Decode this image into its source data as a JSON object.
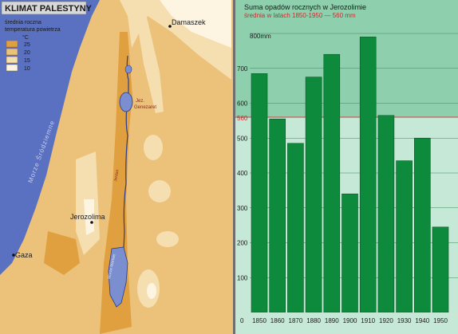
{
  "map": {
    "title": "KLIMAT PALESTYNY",
    "legend": {
      "caption_line1": "średnia roczna",
      "caption_line2": "temperatura powietrza",
      "unit": "°C",
      "items": [
        {
          "label": "25",
          "color": "#e0a040"
        },
        {
          "label": "20",
          "color": "#ecc27a"
        },
        {
          "label": "15",
          "color": "#f5deb0"
        },
        {
          "label": "10",
          "color": "#fdf4e2"
        }
      ]
    },
    "sea_label": "Morze Śródziemne",
    "cities": [
      {
        "name": "Damaszek"
      },
      {
        "name": "Jerozolima"
      },
      {
        "name": "Gaza"
      }
    ],
    "lake_label_line1": "Jez.",
    "lake_label_line2": "Genezaret",
    "river_label": "Jordan",
    "dead_sea_label": "Morze Martwe",
    "colors": {
      "sea": "#5a70c0",
      "lake": "#7a8ed0"
    }
  },
  "chart_data": {
    "type": "bar",
    "title": "Suma opadów rocznych w Jerozolimie",
    "subtitle": "średnia w latach 1850-1950 — 560 mm",
    "unit_label": "800mm",
    "categories": [
      "1850",
      "1860",
      "1870",
      "1880",
      "1890",
      "1900",
      "1910",
      "1920",
      "1930",
      "1940",
      "1950"
    ],
    "values": [
      685,
      555,
      485,
      675,
      740,
      340,
      790,
      565,
      435,
      500,
      245
    ],
    "mean": 560,
    "mean_label": "560",
    "ylim": [
      0,
      800
    ],
    "yticks": [
      {
        "v": 0,
        "label": "0"
      },
      {
        "v": 100,
        "label": "100"
      },
      {
        "v": 200,
        "label": "200"
      },
      {
        "v": 300,
        "label": "300"
      },
      {
        "v": 400,
        "label": "400"
      },
      {
        "v": 500,
        "label": "500"
      },
      {
        "v": 600,
        "label": "600"
      },
      {
        "v": 700,
        "label": "700"
      }
    ],
    "grid": true,
    "colors": {
      "bar": "#0e8a3c",
      "bg_dark": "#8ecfad",
      "bg_light": "#c6e8d6",
      "mean_line": "#d04040",
      "subtitle": "#c03030"
    }
  }
}
